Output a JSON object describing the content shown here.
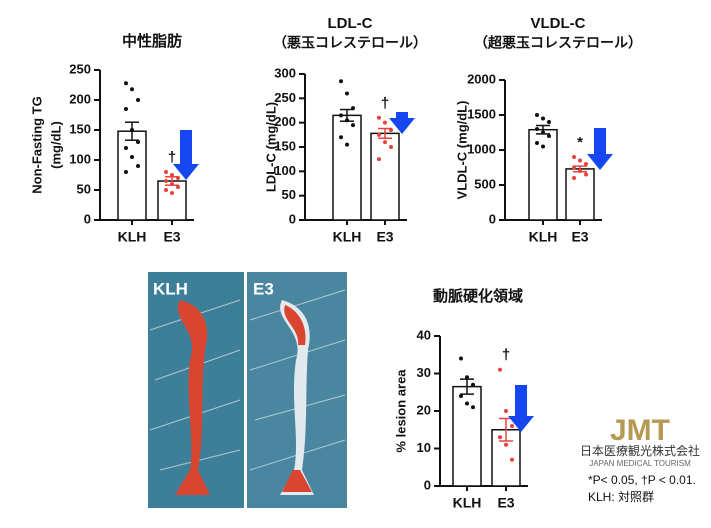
{
  "chart_data": [
    {
      "type": "bar",
      "title": "中性脂肪",
      "ylabel": [
        "Non-Fasting TG",
        "(mg/dL)"
      ],
      "categories": [
        "KLH",
        "E3"
      ],
      "values": [
        148,
        65
      ],
      "errors": [
        15,
        7
      ],
      "points": [
        [
          228,
          218,
          200,
          185,
          150,
          130,
          120,
          105,
          90,
          80
        ],
        [
          80,
          75,
          70,
          65,
          60,
          55,
          50,
          45
        ]
      ],
      "point_colors": [
        "#111111",
        "#e8423c"
      ],
      "annotation": "†",
      "ylim": [
        0,
        250
      ],
      "yticks": [
        0,
        50,
        100,
        150,
        200,
        250
      ]
    },
    {
      "type": "bar",
      "title": "LDL-C",
      "subtitle": "（悪玉コレステロール）",
      "ylabel": [
        "LDL-C (mg/dL)"
      ],
      "categories": [
        "KLH",
        "E3"
      ],
      "values": [
        215,
        178
      ],
      "errors": [
        12,
        10
      ],
      "points": [
        [
          285,
          260,
          230,
          215,
          205,
          195,
          170,
          155
        ],
        [
          210,
          200,
          185,
          175,
          160,
          150,
          125
        ]
      ],
      "point_colors": [
        "#111111",
        "#e8423c"
      ],
      "annotation": "†",
      "ylim": [
        0,
        300
      ],
      "yticks": [
        0,
        50,
        100,
        150,
        200,
        250,
        300
      ]
    },
    {
      "type": "bar",
      "title": "VLDL-C",
      "subtitle": "（超悪玉コレステロール）",
      "ylabel": [
        "VLDL-C (mg/dL)"
      ],
      "categories": [
        "KLH",
        "E3"
      ],
      "values": [
        1290,
        730
      ],
      "errors": [
        60,
        40
      ],
      "points": [
        [
          1500,
          1450,
          1400,
          1300,
          1250,
          1200,
          1100,
          1050
        ],
        [
          900,
          850,
          800,
          750,
          700,
          650,
          600
        ]
      ],
      "point_colors": [
        "#111111",
        "#e8423c"
      ],
      "annotation": "*",
      "ylim": [
        0,
        2000
      ],
      "yticks": [
        0,
        500,
        1000,
        1500,
        2000
      ]
    },
    {
      "type": "bar",
      "title": "動脈硬化領域",
      "ylabel": [
        "% lesion area"
      ],
      "categories": [
        "KLH",
        "E3"
      ],
      "values": [
        26.5,
        15
      ],
      "errors": [
        2,
        3
      ],
      "points": [
        [
          34,
          29,
          27,
          24,
          22,
          21
        ],
        [
          31,
          20,
          16,
          13,
          11,
          7
        ]
      ],
      "point_colors": [
        "#111111",
        "#e8423c"
      ],
      "annotation": "†",
      "ylim": [
        0,
        40
      ],
      "yticks": [
        0,
        10,
        20,
        30,
        40
      ]
    }
  ],
  "photo": {
    "labels": [
      "KLH",
      "E3"
    ]
  },
  "logo": {
    "mark": "JMT",
    "name": "日本医療観光株式会社",
    "english": "JAPAN MEDICAL TOURISM"
  },
  "footnotes": [
    "*P< 0.05, †P < 0.01.",
    "KLH: 対照群"
  ]
}
